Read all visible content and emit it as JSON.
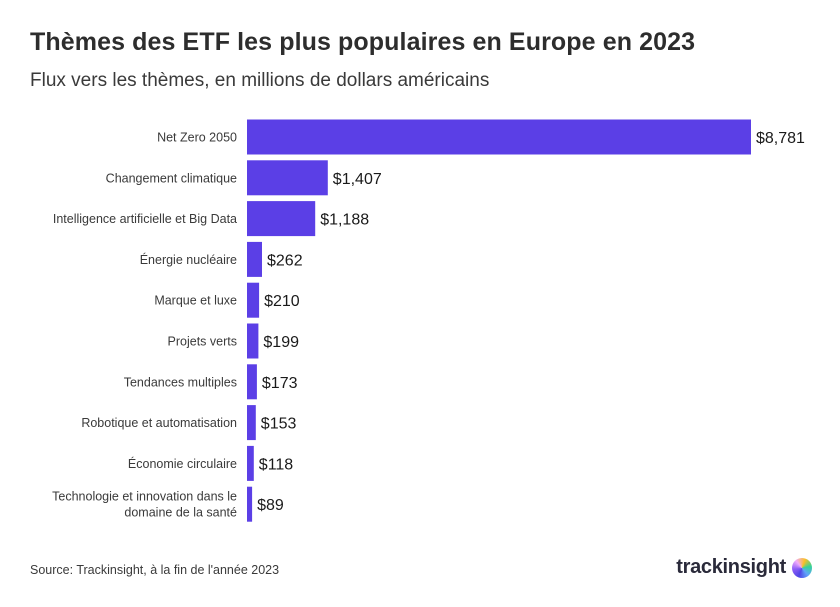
{
  "header": {
    "title": "Thèmes des ETF les plus populaires en Europe en 2023",
    "subtitle": "Flux vers les thèmes, en millions de dollars américains"
  },
  "footer": {
    "source": "Source: Trackinsight, à la fin de l'année 2023",
    "brand": "trackinsight"
  },
  "colors": {
    "bar": "#5b3fe6"
  },
  "chart_data": {
    "type": "bar",
    "orientation": "horizontal",
    "title": "Thèmes des ETF les plus populaires en Europe en 2023",
    "subtitle": "Flux vers les thèmes, en millions de dollars américains",
    "xlabel": "",
    "ylabel": "",
    "xlim": [
      0,
      8781
    ],
    "grid": false,
    "categories": [
      [
        "Net Zero 2050"
      ],
      [
        "Changement climatique"
      ],
      [
        "Intelligence artificielle et Big Data"
      ],
      [
        "Énergie nucléaire"
      ],
      [
        "Marque et luxe"
      ],
      [
        "Projets verts"
      ],
      [
        "Tendances multiples"
      ],
      [
        "Robotique et automatisation"
      ],
      [
        "Économie circulaire"
      ],
      [
        "Technologie et innovation dans le",
        "domaine de la santé"
      ]
    ],
    "values": [
      8781,
      1407,
      1188,
      262,
      210,
      199,
      173,
      153,
      118,
      89
    ],
    "value_labels": [
      "$8,781",
      "$1,407",
      "$1,188",
      "$262",
      "$210",
      "$199",
      "$173",
      "$153",
      "$118",
      "$89"
    ]
  }
}
